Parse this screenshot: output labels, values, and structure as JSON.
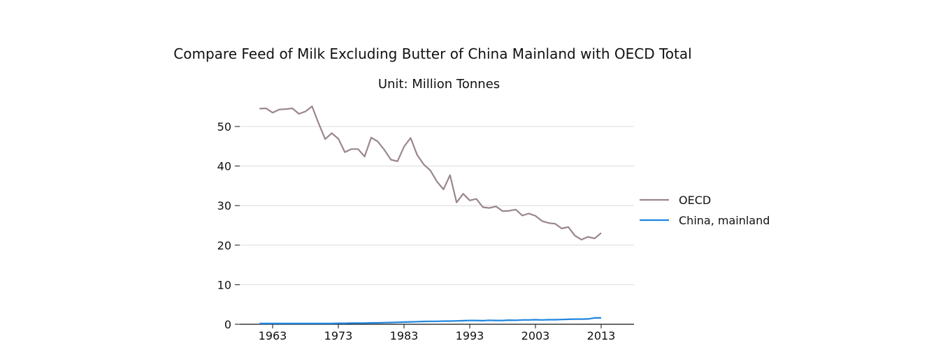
{
  "chart_data": {
    "type": "line",
    "title": "Compare Feed of Milk Excluding Butter of China Mainland with OECD Total",
    "subtitle": "Unit: Million Tonnes",
    "xlabel": "",
    "ylabel": "",
    "xlim": [
      1958,
      2018
    ],
    "ylim": [
      0,
      58
    ],
    "x_ticks": [
      1963,
      1973,
      1983,
      1993,
      2003,
      2013
    ],
    "y_ticks": [
      0,
      10,
      20,
      30,
      40,
      50
    ],
    "grid": "horizontal",
    "legend_position": "right",
    "x": [
      1961,
      1962,
      1963,
      1964,
      1965,
      1966,
      1967,
      1968,
      1969,
      1970,
      1971,
      1972,
      1973,
      1974,
      1975,
      1976,
      1977,
      1978,
      1979,
      1980,
      1981,
      1982,
      1983,
      1984,
      1985,
      1986,
      1987,
      1988,
      1989,
      1990,
      1991,
      1992,
      1993,
      1994,
      1995,
      1996,
      1997,
      1998,
      1999,
      2000,
      2001,
      2002,
      2003,
      2004,
      2005,
      2006,
      2007,
      2008,
      2009,
      2010,
      2011,
      2012,
      2013
    ],
    "series": [
      {
        "name": "OECD",
        "color": "#9b868e",
        "values": [
          54.5,
          54.6,
          53.5,
          54.3,
          54.4,
          54.6,
          53.2,
          53.8,
          55.1,
          50.8,
          46.8,
          48.3,
          46.9,
          43.5,
          44.3,
          44.3,
          42.4,
          47.2,
          46.2,
          44.1,
          41.6,
          41.2,
          44.9,
          47.1,
          42.8,
          40.4,
          38.9,
          36.1,
          34.1,
          37.7,
          30.8,
          33.0,
          31.3,
          31.7,
          29.6,
          29.4,
          29.8,
          28.6,
          28.7,
          29.0,
          27.5,
          28.0,
          27.4,
          26.1,
          25.6,
          25.4,
          24.2,
          24.6,
          22.4,
          21.4,
          22.1,
          21.7,
          23.1
        ]
      },
      {
        "name": "China, mainland",
        "color": "#1f85de",
        "values": [
          0.2,
          0.2,
          0.2,
          0.2,
          0.2,
          0.2,
          0.2,
          0.2,
          0.2,
          0.2,
          0.2,
          0.2,
          0.25,
          0.25,
          0.3,
          0.3,
          0.3,
          0.35,
          0.35,
          0.4,
          0.45,
          0.5,
          0.55,
          0.6,
          0.65,
          0.7,
          0.75,
          0.75,
          0.8,
          0.8,
          0.85,
          0.9,
          0.95,
          0.95,
          0.9,
          1.0,
          0.95,
          0.95,
          1.05,
          1.0,
          1.1,
          1.1,
          1.15,
          1.1,
          1.15,
          1.15,
          1.2,
          1.25,
          1.3,
          1.3,
          1.35,
          1.6,
          1.6
        ]
      }
    ]
  }
}
